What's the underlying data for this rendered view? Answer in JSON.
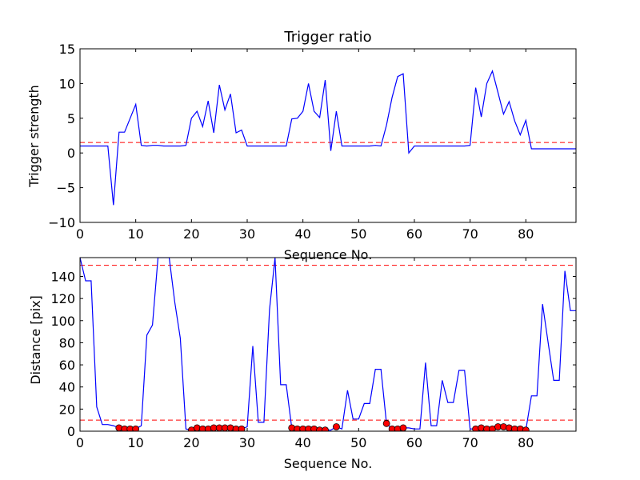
{
  "chart_data": [
    {
      "type": "line",
      "title": "Trigger ratio",
      "xlabel": "Sequence No.",
      "ylabel": "Trigger strength",
      "xlim": [
        0,
        89
      ],
      "ylim": [
        -10,
        15
      ],
      "xticks": [
        0,
        10,
        20,
        30,
        40,
        50,
        60,
        70,
        80
      ],
      "yticks": [
        -10,
        -5,
        0,
        5,
        10,
        15
      ],
      "xtick_labels": [
        "0",
        "10",
        "20",
        "30",
        "40",
        "50",
        "60",
        "70",
        "80"
      ],
      "ytick_labels": [
        "−10",
        "−5",
        "0",
        "5",
        "10",
        "15"
      ],
      "threshold": 1.5,
      "colors": {
        "line": "#0000ff",
        "threshold": "#ff0000"
      },
      "series": [
        {
          "x": [
            0,
            1,
            2,
            3,
            4,
            5,
            6,
            7,
            8,
            9,
            10,
            11,
            12,
            13,
            14,
            15,
            16,
            17,
            18,
            19,
            20,
            21,
            22,
            23,
            24,
            25,
            26,
            27,
            28,
            29,
            30,
            31,
            32,
            33,
            34,
            35,
            36,
            37,
            38,
            39,
            40,
            41,
            42,
            43,
            44,
            45,
            46,
            47,
            48,
            49,
            50,
            51,
            52,
            53,
            54,
            55,
            56,
            57,
            58,
            59,
            60,
            61,
            62,
            63,
            64,
            65,
            66,
            67,
            68,
            69,
            70,
            71,
            72,
            73,
            74,
            75,
            76,
            77,
            78,
            79,
            80,
            81,
            82,
            83,
            84,
            85,
            86,
            87,
            88,
            89
          ],
          "values": [
            1,
            1,
            1,
            1,
            1,
            1,
            -7.5,
            3,
            3,
            5,
            7,
            1.1,
            1,
            1.1,
            1.1,
            1,
            1,
            1,
            1,
            1.1,
            5,
            6,
            3.8,
            7.5,
            2.9,
            9.8,
            6.2,
            8.5,
            2.9,
            3.3,
            1,
            1,
            1,
            1,
            1,
            1,
            1,
            1,
            4.9,
            5,
            6,
            10,
            6,
            5.1,
            10.5,
            0.3,
            6,
            1,
            1,
            1,
            1,
            1,
            1,
            1.1,
            1,
            4,
            8,
            11,
            11.4,
            0,
            1,
            1,
            1,
            1,
            1,
            1,
            1,
            1,
            1,
            1,
            1.1,
            9.4,
            5.2,
            10,
            11.8,
            8.7,
            5.6,
            7.4,
            4.6,
            2.6,
            4.7,
            0.6,
            0.6,
            0.6,
            0.6,
            0.6,
            0.6,
            0.6,
            0.6,
            0.6
          ]
        }
      ]
    },
    {
      "type": "line",
      "title": "",
      "xlabel": "Sequence No.",
      "ylabel": "Distance [pix]",
      "xlim": [
        0,
        89
      ],
      "ylim": [
        0,
        157
      ],
      "xticks": [
        0,
        10,
        20,
        30,
        40,
        50,
        60,
        70,
        80
      ],
      "yticks": [
        0,
        20,
        40,
        60,
        80,
        100,
        120,
        140
      ],
      "xtick_labels": [
        "0",
        "10",
        "20",
        "30",
        "40",
        "50",
        "60",
        "70",
        "80"
      ],
      "ytick_labels": [
        "0",
        "20",
        "40",
        "60",
        "80",
        "100",
        "120",
        "140"
      ],
      "thresholds": [
        10,
        150
      ],
      "colors": {
        "line": "#0000ff",
        "threshold": "#ff0000",
        "marker": "#ff0000"
      },
      "series": [
        {
          "x": [
            0,
            1,
            2,
            3,
            4,
            5,
            6,
            7,
            8,
            9,
            10,
            11,
            12,
            13,
            14,
            15,
            16,
            17,
            18,
            19,
            20,
            21,
            22,
            23,
            24,
            25,
            26,
            27,
            28,
            29,
            30,
            31,
            32,
            33,
            34,
            35,
            36,
            37,
            38,
            39,
            40,
            41,
            42,
            43,
            44,
            45,
            46,
            47,
            48,
            49,
            50,
            51,
            52,
            53,
            54,
            55,
            56,
            57,
            58,
            59,
            60,
            61,
            62,
            63,
            64,
            65,
            66,
            67,
            68,
            69,
            70,
            71,
            72,
            73,
            74,
            75,
            76,
            77,
            78,
            79,
            80,
            81,
            82,
            83,
            84,
            85,
            86,
            87,
            88,
            89
          ],
          "values": [
            157,
            136,
            136,
            22,
            6,
            6,
            5,
            3,
            2,
            2,
            2,
            5,
            87,
            96,
            157,
            157,
            157,
            117,
            84,
            2,
            1,
            3,
            2,
            2,
            3,
            3,
            3,
            3,
            2,
            2,
            4,
            77,
            8,
            8,
            110,
            157,
            42,
            42,
            3,
            2,
            2,
            2,
            2,
            1,
            1,
            1,
            4,
            2,
            37,
            11,
            11,
            25,
            25,
            56,
            56,
            7,
            2,
            2,
            3,
            3,
            2,
            2,
            62,
            5,
            5,
            46,
            26,
            26,
            55,
            55,
            2,
            2,
            3,
            2,
            2,
            4,
            4,
            3,
            2,
            2,
            1,
            32,
            32,
            115,
            80,
            46,
            46,
            145,
            109,
            109
          ]
        }
      ],
      "markers": {
        "x": [
          7,
          8,
          9,
          10,
          20,
          21,
          22,
          23,
          24,
          25,
          26,
          27,
          28,
          29,
          38,
          39,
          40,
          41,
          42,
          43,
          44,
          46,
          55,
          56,
          57,
          58,
          71,
          72,
          73,
          74,
          75,
          76,
          77,
          78,
          79,
          80
        ],
        "values": [
          3,
          2,
          2,
          2,
          1,
          3,
          2,
          2,
          3,
          3,
          3,
          3,
          2,
          2,
          3,
          2,
          2,
          2,
          2,
          1,
          1,
          4,
          7,
          2,
          2,
          3,
          2,
          3,
          2,
          2,
          4,
          4,
          3,
          2,
          2,
          1
        ]
      }
    }
  ]
}
